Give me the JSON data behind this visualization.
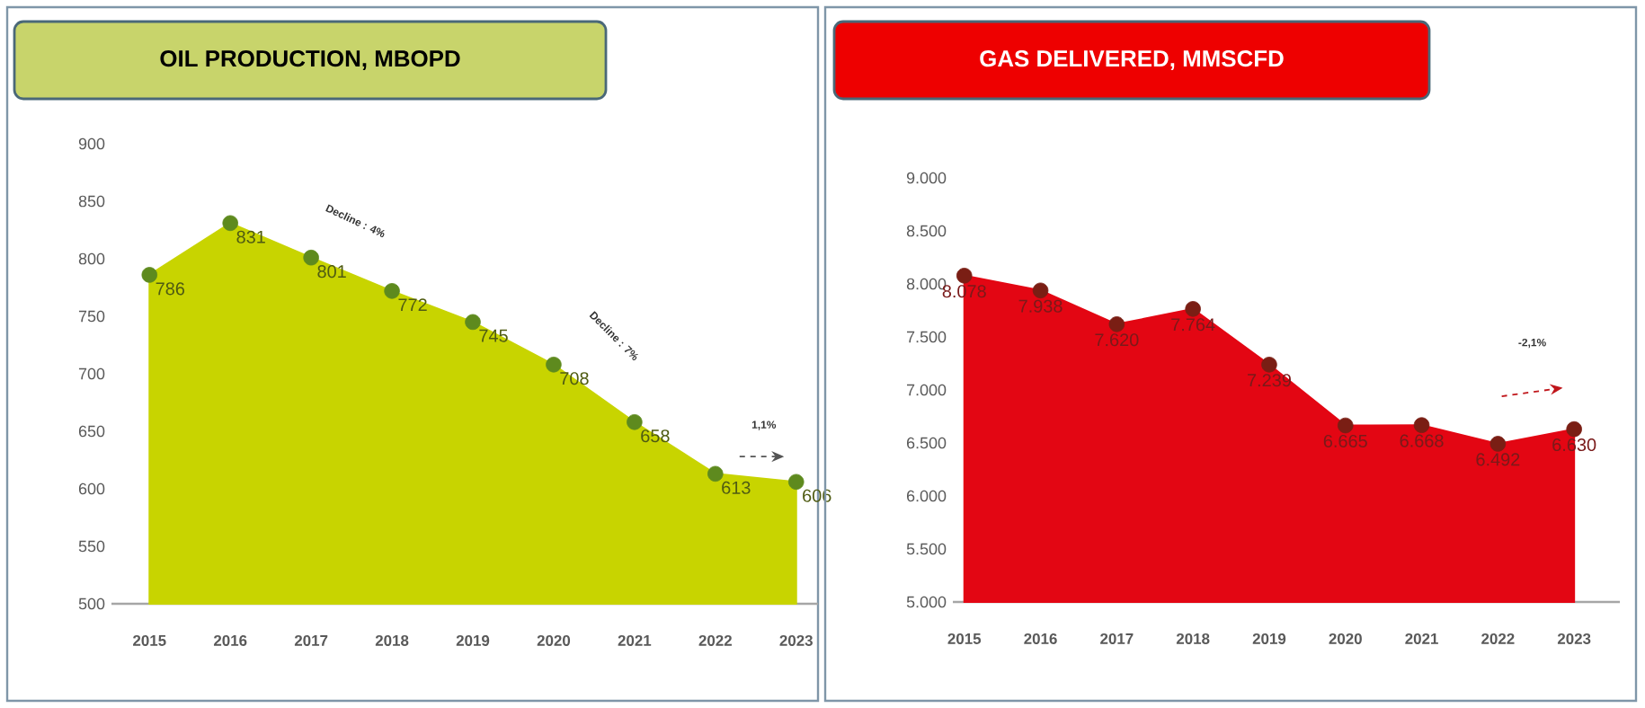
{
  "chart_data": [
    {
      "type": "area",
      "title": "OIL PRODUCTION, MBOPD",
      "categories": [
        "2015",
        "2016",
        "2017",
        "2018",
        "2019",
        "2020",
        "2021",
        "2022",
        "2023"
      ],
      "values": [
        786,
        831,
        801,
        772,
        745,
        708,
        658,
        613,
        606
      ],
      "color": "#c8d400",
      "ylim": [
        500,
        900
      ],
      "yticks": [
        500,
        550,
        600,
        650,
        700,
        750,
        800,
        850,
        900
      ],
      "marker": "circle",
      "data_labels": true,
      "annotations": [
        "Decline : 4%",
        "Decline : 7%",
        "1,1%"
      ]
    },
    {
      "type": "area",
      "title": "GAS DELIVERED, MMSCFD",
      "categories": [
        "2015",
        "2016",
        "2017",
        "2018",
        "2019",
        "2020",
        "2021",
        "2022",
        "2023"
      ],
      "values": [
        8078,
        7938,
        7620,
        7764,
        7239,
        6665,
        6668,
        6492,
        6630
      ],
      "color": "#e30613",
      "value_labels": [
        "8.078",
        "7.938",
        "7.620",
        "7.764",
        "7.239",
        "6.665",
        "6.668",
        "6.492",
        "6.630"
      ],
      "ylim": [
        5000,
        9000
      ],
      "yticks": [
        {
          "value": 5000,
          "label": "5.000"
        },
        {
          "value": 5500,
          "label": "5.500"
        },
        {
          "value": 6000,
          "label": "6.000"
        },
        {
          "value": 6500,
          "label": "6.500"
        },
        {
          "value": 7000,
          "label": "7.000"
        },
        {
          "value": 7500,
          "label": "7.500"
        },
        {
          "value": 8000,
          "label": "8.000"
        },
        {
          "value": 8500,
          "label": "8.500"
        },
        {
          "value": 9000,
          "label": "9.000"
        }
      ],
      "marker": "circle",
      "annotations": [
        "-2,1%"
      ]
    }
  ]
}
